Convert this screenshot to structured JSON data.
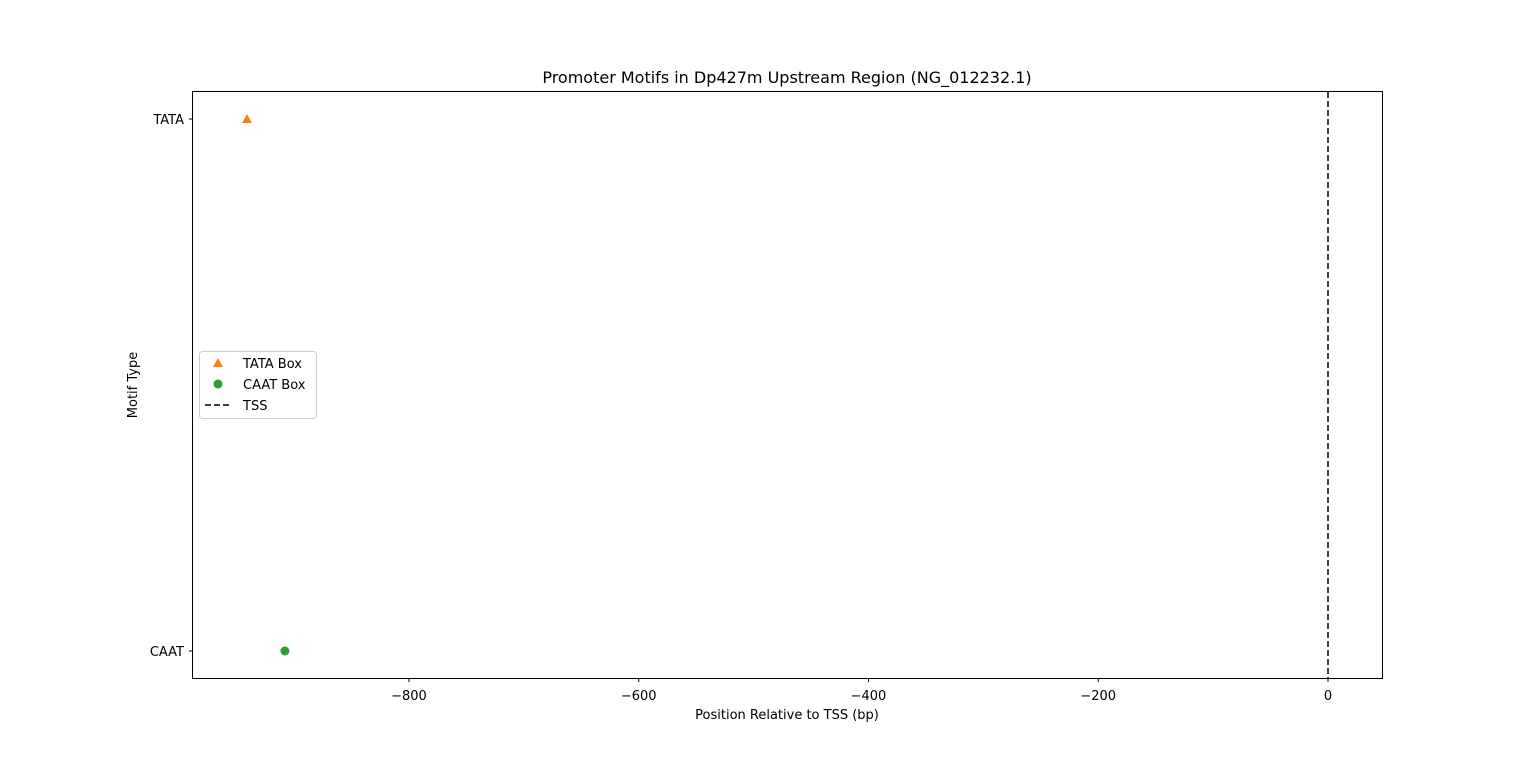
{
  "chart_data": {
    "type": "scatter",
    "title": "Promoter Motifs in Dp427m Upstream Region (NG_012232.1)",
    "xlabel": "Position Relative to TSS (bp)",
    "ylabel": "Motif Type",
    "xlim": [
      -988,
      47
    ],
    "ylim": [
      "CAAT",
      "TATA"
    ],
    "categories": [
      "CAAT",
      "TATA"
    ],
    "x_ticks": [
      -800,
      -600,
      -400,
      -200,
      0
    ],
    "x_tick_labels": [
      "−800",
      "−600",
      "−400",
      "−200",
      "0"
    ],
    "grid": false,
    "legend_position": "center-left",
    "series": [
      {
        "name": "TATA Box",
        "marker": "triangle",
        "color": "#ff7f0e",
        "points": [
          {
            "x": -941,
            "y": "TATA"
          }
        ]
      },
      {
        "name": "CAAT Box",
        "marker": "circle",
        "color": "#2ca02c",
        "points": [
          {
            "x": -908,
            "y": "CAAT"
          }
        ]
      }
    ],
    "reference_lines": [
      {
        "name": "TSS",
        "x": 0,
        "style": "dashed",
        "color": "#000000"
      }
    ]
  }
}
